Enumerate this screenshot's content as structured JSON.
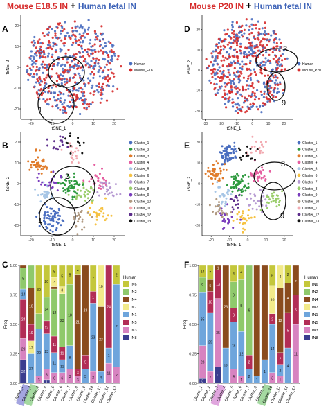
{
  "headers": {
    "left": {
      "mouse": "Mouse E18.5 IN",
      "plus": "+",
      "human": "Human fetal IN"
    },
    "right": {
      "mouse": "Mouse P20 IN",
      "plus": "+",
      "human": "Human fetal IN"
    }
  },
  "colors": {
    "human": "#4a6ec0",
    "mouse": "#d62b2b",
    "clusters": [
      "#4a6ec0",
      "#2e9a3f",
      "#e07b2a",
      "#e55ea0",
      "#a7c6e6",
      "#f6c243",
      "#b69ad2",
      "#9acd6b",
      "#7a3dbd",
      "#b19a82",
      "#f2a9b0",
      "#5d2d8c",
      "#111111"
    ],
    "in_types": {
      "IN6": "#c4c73b",
      "IN2": "#8fc96b",
      "IN4": "#8a4b1d",
      "IN7": "#f2ea8a",
      "IN1": "#6ea5dc",
      "IN5": "#b22d56",
      "IN3": "#d783c0",
      "IN8": "#3b3d8f"
    }
  },
  "panels": {
    "A": {
      "letter": "A",
      "chart_data": {
        "type": "scatter",
        "xlabel": "tSNE_1",
        "ylabel": "tSNE_2",
        "xticks": [
          "-20",
          "-10",
          "0",
          "10",
          "20"
        ],
        "yticks": [
          "-20",
          "-10",
          "0",
          "10",
          "20"
        ],
        "xlim": [
          -25,
          25
        ],
        "ylim": [
          -25,
          25
        ],
        "legend": {
          "position": "right",
          "items": [
            {
              "name": "Human",
              "color": "#4a6ec0"
            },
            {
              "name": "Mouse_E18",
              "color": "#d62b2b"
            }
          ]
        },
        "annotations": [
          {
            "label": "1"
          }
        ],
        "seed": 11
      }
    },
    "B": {
      "letter": "B",
      "chart_data": {
        "type": "scatter",
        "xlabel": "tSNE_1",
        "ylabel": "tSNE_2",
        "xticks": [
          "-20",
          "-10",
          "0",
          "10",
          "20"
        ],
        "yticks": [
          "-20",
          "-10",
          "0",
          "10",
          "20"
        ],
        "xlim": [
          -25,
          25
        ],
        "ylim": [
          -25,
          25
        ],
        "legend": {
          "position": "right",
          "items": [
            "Cluster_1",
            "Cluster_2",
            "Cluster_3",
            "Cluster_4",
            "Cluster_5",
            "Cluster_6",
            "Cluster_7",
            "Cluster_8",
            "Cluster_9",
            "Cluster_10",
            "Cluster_11",
            "Cluster_12",
            "Cluster_13"
          ]
        },
        "annotations": [
          {
            "label": "2"
          },
          {
            "label": "1"
          }
        ],
        "seed": 23
      }
    },
    "D": {
      "letter": "D",
      "chart_data": {
        "type": "scatter",
        "xlabel": "tSNE_1",
        "ylabel": "tSNE_2",
        "xticks": [
          "-30",
          "-20",
          "-10",
          "0",
          "10",
          "20"
        ],
        "yticks": [
          "-20",
          "-10",
          "0",
          "10",
          "20"
        ],
        "xlim": [
          -32,
          26
        ],
        "ylim": [
          -24,
          27
        ],
        "legend": {
          "position": "right",
          "items": [
            {
              "name": "Human",
              "color": "#4a6ec0"
            },
            {
              "name": "Mouse_P20",
              "color": "#d62b2b"
            }
          ]
        },
        "annotations": [
          {
            "label": "3"
          },
          {
            "label": "9"
          }
        ],
        "seed": 37
      }
    },
    "E": {
      "letter": "E",
      "chart_data": {
        "type": "scatter",
        "xlabel": "tSNE_1",
        "ylabel": "tSNE_2",
        "xticks": [
          "-20",
          "-10",
          "0",
          "10",
          "20"
        ],
        "yticks": [
          "-20",
          "-10",
          "0",
          "10",
          "20"
        ],
        "xlim": [
          -25,
          25
        ],
        "ylim": [
          -25,
          25
        ],
        "legend": {
          "position": "right",
          "items": [
            "Cluster_1",
            "Cluster_2",
            "Cluster_3",
            "Cluster_4",
            "Cluster_5",
            "Cluster_6",
            "Cluster_7",
            "Cluster_8",
            "Cluster_9",
            "Cluster_10",
            "Cluster_11",
            "Cluster_12",
            "Cluster_13"
          ]
        },
        "annotations": [
          {
            "label": "3"
          },
          {
            "label": "9"
          }
        ],
        "seed": 51
      }
    },
    "C": {
      "letter": "C",
      "chart_data": {
        "type": "bar",
        "stacked": true,
        "ylabel": "Freq",
        "yticks": [
          "0.00",
          "0.25",
          "0.50",
          "0.75",
          "1.00"
        ],
        "ylim": [
          0,
          1
        ],
        "categories": [
          "Cluster_1",
          "Cluster_2",
          "Cluster_3",
          "Cluster_4",
          "Cluster_5",
          "Cluster_6",
          "Cluster_7",
          "Cluster_8",
          "Cluster_9",
          "Cluster_10",
          "Cluster_11",
          "Cluster_12",
          "Cluster_13"
        ],
        "highlight": [
          {
            "index": 0,
            "color": "#8d8fd8"
          },
          {
            "index": 1,
            "color": "#8fd08a"
          }
        ],
        "legend": {
          "position": "right",
          "title": "Human",
          "items": [
            "IN6",
            "IN2",
            "IN4",
            "IN7",
            "IN1",
            "IN5",
            "IN3",
            "IN8"
          ]
        },
        "stacks": [
          [
            {
              "t": "IN8",
              "v": 0.2,
              "l": "32"
            },
            {
              "t": "IN3",
              "v": 0.18,
              "l": "29"
            },
            {
              "t": "IN5",
              "v": 0.33,
              "l": "24"
            },
            {
              "t": "IN1",
              "v": 0.09,
              "l": "14"
            },
            {
              "t": "IN2",
              "v": 0.18,
              "l": "5"
            },
            {
              "t": "IN4",
              "v": 0.02,
              "l": "1"
            }
          ],
          [
            {
              "t": "IN1",
              "v": 0.25,
              "l": "37"
            },
            {
              "t": "IN7",
              "v": 0.11,
              "l": "17"
            },
            {
              "t": "IN5",
              "v": 0.14,
              "l": "19"
            },
            {
              "t": "IN4",
              "v": 0.31,
              "l": "10"
            },
            {
              "t": "IN2",
              "v": 0.19,
              "l": ""
            }
          ],
          [
            {
              "t": "IN3",
              "v": 0.06,
              "l": "3"
            },
            {
              "t": "IN1",
              "v": 0.4,
              "l": "20"
            },
            {
              "t": "IN2",
              "v": 0.13,
              "l": ""
            },
            {
              "t": "IN6",
              "v": 0.41,
              "l": "30"
            }
          ],
          [
            {
              "t": "IN8",
              "v": 0.03,
              "l": "1"
            },
            {
              "t": "IN3",
              "v": 0.09,
              "l": "8"
            },
            {
              "t": "IN1",
              "v": 0.3,
              "l": "23"
            },
            {
              "t": "IN5",
              "v": 0.11,
              "l": "12"
            },
            {
              "t": "IN2",
              "v": 0.2,
              "l": "14"
            },
            {
              "t": "IN6",
              "v": 0.27,
              "l": "20"
            }
          ],
          [
            {
              "t": "IN3",
              "v": 0.09,
              "l": "6"
            },
            {
              "t": "IN1",
              "v": 0.17,
              "l": "11"
            },
            {
              "t": "IN5",
              "v": 0.14,
              "l": "11"
            },
            {
              "t": "IN2",
              "v": 0.4,
              "l": "12"
            },
            {
              "t": "IN4",
              "v": 0.02,
              "l": ""
            },
            {
              "t": "IN7",
              "v": 0.08,
              "l": "3"
            },
            {
              "t": "IN6",
              "v": 0.1,
              "l": "5"
            }
          ],
          [
            {
              "t": "IN3",
              "v": 0.09,
              "l": "6"
            },
            {
              "t": "IN1",
              "v": 0.11,
              "l": "11"
            },
            {
              "t": "IN5",
              "v": 0.11,
              "l": "11"
            },
            {
              "t": "IN2",
              "v": 0.45,
              "l": "23"
            },
            {
              "t": "IN7",
              "v": 0.06,
              "l": "3"
            },
            {
              "t": "IN6",
              "v": 0.18,
              "l": "5"
            }
          ],
          [
            {
              "t": "IN3",
              "v": 0.12,
              "l": "3"
            },
            {
              "t": "IN1",
              "v": 0.2,
              "l": "8"
            },
            {
              "t": "IN2",
              "v": 0.52,
              "l": "18"
            },
            {
              "t": "IN6",
              "v": 0.16,
              "l": "5"
            }
          ],
          [
            {
              "t": "IN3",
              "v": 0.06,
              "l": "3"
            },
            {
              "t": "IN5",
              "v": 0.06,
              "l": "3"
            },
            {
              "t": "IN4",
              "v": 0.8,
              "l": "21"
            },
            {
              "t": "IN6",
              "v": 0.08,
              "l": "4"
            }
          ],
          [
            {
              "t": "IN1",
              "v": 0.12,
              "l": "5"
            },
            {
              "t": "IN5",
              "v": 0.12,
              "l": "5"
            },
            {
              "t": "IN4",
              "v": 0.76,
              "l": "23"
            }
          ],
          [
            {
              "t": "IN3",
              "v": 0.1,
              "l": "2"
            },
            {
              "t": "IN1",
              "v": 0.58,
              "l": "23"
            },
            {
              "t": "IN5",
              "v": 0.1,
              "l": "1"
            },
            {
              "t": "IN6",
              "v": 0.22,
              "l": "7"
            }
          ],
          [
            {
              "t": "IN1",
              "v": 0.1,
              "l": "4"
            },
            {
              "t": "IN4",
              "v": 0.55,
              "l": "23"
            },
            {
              "t": "IN7",
              "v": 0.35,
              "l": "10"
            }
          ],
          [
            {
              "t": "IN3",
              "v": 0.17,
              "l": "11"
            },
            {
              "t": "IN1",
              "v": 0.13,
              "l": "1"
            },
            {
              "t": "IN5",
              "v": 0.7,
              "l": "24"
            }
          ],
          [
            {
              "t": "IN3",
              "v": 0.14,
              "l": "2"
            },
            {
              "t": "IN1",
              "v": 0.7,
              "l": "5"
            },
            {
              "t": "IN6",
              "v": 0.16,
              "l": "2"
            }
          ]
        ]
      }
    },
    "F": {
      "letter": "F",
      "chart_data": {
        "type": "bar",
        "stacked": true,
        "ylabel": "Freq",
        "yticks": [
          "0.00",
          "0.25",
          "0.50",
          "0.75",
          "1.00"
        ],
        "ylim": [
          0,
          1
        ],
        "categories": [
          "Cluster_1",
          "Cluster_2",
          "Cluster_3",
          "Cluster_4",
          "Cluster_5",
          "Cluster_6",
          "Cluster_7",
          "Cluster_8",
          "Cluster_9",
          "Cluster_10",
          "Cluster_11",
          "Cluster_12",
          "Cluster_13"
        ],
        "highlight": [
          {
            "index": 2,
            "color": "#d890d6"
          },
          {
            "index": 8,
            "color": "#8fd08a"
          }
        ],
        "legend": {
          "position": "right",
          "title": "Human",
          "items": [
            "IN6",
            "IN2",
            "IN4",
            "IN7",
            "IN1",
            "IN5",
            "IN3",
            "IN8"
          ]
        },
        "stacks": [
          [
            {
              "t": "IN8",
              "v": 0.04,
              "l": "3"
            },
            {
              "t": "IN3",
              "v": 0.28,
              "l": "28"
            },
            {
              "t": "IN1",
              "v": 0.45,
              "l": "35"
            },
            {
              "t": "IN2",
              "v": 0.13,
              "l": "9"
            },
            {
              "t": "IN6",
              "v": 0.1,
              "l": "14"
            }
          ],
          [
            {
              "t": "IN3",
              "v": 0.1,
              "l": "7"
            },
            {
              "t": "IN1",
              "v": 0.5,
              "l": "29"
            },
            {
              "t": "IN5",
              "v": 0.18,
              "l": "10"
            },
            {
              "t": "IN4",
              "v": 0.1,
              "l": "5"
            },
            {
              "t": "IN6",
              "v": 0.12,
              "l": "7"
            }
          ],
          [
            {
              "t": "IN8",
              "v": 0.14,
              "l": "11"
            },
            {
              "t": "IN3",
              "v": 0.58,
              "l": "35"
            },
            {
              "t": "IN5",
              "v": 0.24,
              "l": "13"
            },
            {
              "t": "IN4",
              "v": 0.04,
              "l": "1"
            }
          ],
          [
            {
              "t": "IN1",
              "v": 0.3,
              "l": "12"
            },
            {
              "t": "IN4",
              "v": 0.7,
              "l": "23"
            }
          ],
          [
            {
              "t": "IN3",
              "v": 0.12,
              "l": "4"
            },
            {
              "t": "IN1",
              "v": 0.4,
              "l": "18"
            },
            {
              "t": "IN5",
              "v": 0.12,
              "l": "3"
            },
            {
              "t": "IN2",
              "v": 0.22,
              "l": "9"
            },
            {
              "t": "IN6",
              "v": 0.14,
              "l": "4"
            }
          ],
          [
            {
              "t": "IN3",
              "v": 0.06,
              "l": "1"
            },
            {
              "t": "IN1",
              "v": 0.38,
              "l": "12"
            },
            {
              "t": "IN2",
              "v": 0.44,
              "l": "5"
            },
            {
              "t": "IN6",
              "v": 0.12,
              "l": "4"
            }
          ],
          [
            {
              "t": "IN1",
              "v": 0.12,
              "l": "2"
            },
            {
              "t": "IN5",
              "v": 0.12,
              "l": "2"
            },
            {
              "t": "IN2",
              "v": 0.76,
              "l": "6"
            }
          ],
          [
            {
              "t": "IN1",
              "v": 0.06,
              "l": "1"
            },
            {
              "t": "IN4",
              "v": 0.94,
              "l": ""
            }
          ],
          [
            {
              "t": "IN1",
              "v": 0.2,
              "l": "1"
            },
            {
              "t": "IN4",
              "v": 0.8,
              "l": ""
            }
          ],
          [
            {
              "t": "IN3",
              "v": 0.09,
              "l": "3"
            },
            {
              "t": "IN1",
              "v": 0.41,
              "l": "14"
            },
            {
              "t": "IN5",
              "v": 0.09,
              "l": "2"
            },
            {
              "t": "IN7",
              "v": 0.24,
              "l": "10"
            },
            {
              "t": "IN6",
              "v": 0.17,
              "l": "6"
            }
          ],
          [
            {
              "t": "IN3",
              "v": 0.06,
              "l": "1"
            },
            {
              "t": "IN1",
              "v": 0.1,
              "l": "2"
            },
            {
              "t": "IN5",
              "v": 0.1,
              "l": "2"
            },
            {
              "t": "IN4",
              "v": 0.55,
              "l": "12"
            },
            {
              "t": "IN7",
              "v": 0.19,
              "l": "4"
            }
          ],
          [
            {
              "t": "IN1",
              "v": 0.3,
              "l": "4"
            },
            {
              "t": "IN5",
              "v": 0.3,
              "l": "5"
            },
            {
              "t": "IN4",
              "v": 0.25,
              "l": "4"
            },
            {
              "t": "IN6",
              "v": 0.15,
              "l": "2"
            }
          ],
          [
            {
              "t": "IN3",
              "v": 0.5,
              "l": "11"
            },
            {
              "t": "IN5",
              "v": 0.25,
              "l": "5"
            },
            {
              "t": "IN4",
              "v": 0.25,
              "l": "5"
            }
          ]
        ]
      }
    }
  }
}
